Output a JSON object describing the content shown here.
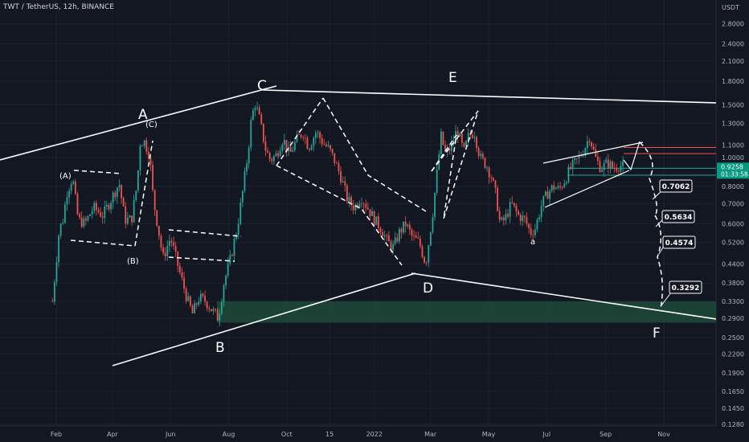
{
  "chart_data": {
    "type": "candlestick",
    "title": "TWT / TetherUS, 12h, BINANCE",
    "ylabel": "USDT",
    "y_scale": "log",
    "ylim": [
      0.128,
      3.2
    ],
    "x_tick_labels": [
      "Feb",
      "Apr",
      "Jun",
      "Aug",
      "Oct",
      "15",
      "2022",
      "Mar",
      "May",
      "Jul",
      "Sep",
      "Nov"
    ],
    "y_tick_labels": [
      "2.8000",
      "2.4000",
      "2.1000",
      "1.8000",
      "1.5000",
      "1.3000",
      "1.1000",
      "1.0000",
      "0.8000",
      "0.7000",
      "0.6000",
      "0.5200",
      "0.4400",
      "0.3800",
      "0.3300",
      "0.2900",
      "0.2500",
      "0.2200",
      "0.1900",
      "0.1650",
      "0.1450",
      "0.1280"
    ],
    "price_path": [
      [
        "2021-01-28",
        0.33
      ],
      [
        "2021-02-04",
        0.57
      ],
      [
        "2021-02-08",
        0.62
      ],
      [
        "2021-02-12",
        0.76
      ],
      [
        "2021-02-18",
        0.86
      ],
      [
        "2021-02-24",
        0.62
      ],
      [
        "2021-03-03",
        0.6
      ],
      [
        "2021-03-12",
        0.68
      ],
      [
        "2021-03-22",
        0.64
      ],
      [
        "2021-04-01",
        0.74
      ],
      [
        "2021-04-08",
        0.82
      ],
      [
        "2021-04-14",
        0.62
      ],
      [
        "2021-04-21",
        0.62
      ],
      [
        "2021-04-27",
        0.82
      ],
      [
        "2021-04-30",
        1.12
      ],
      [
        "2021-05-04",
        1.14
      ],
      [
        "2021-05-10",
        1.02
      ],
      [
        "2021-05-14",
        0.72
      ],
      [
        "2021-05-19",
        0.58
      ],
      [
        "2021-05-24",
        0.46
      ],
      [
        "2021-06-01",
        0.54
      ],
      [
        "2021-06-10",
        0.42
      ],
      [
        "2021-06-18",
        0.34
      ],
      [
        "2021-06-24",
        0.3
      ],
      [
        "2021-07-01",
        0.34
      ],
      [
        "2021-07-08",
        0.33
      ],
      [
        "2021-07-14",
        0.31
      ],
      [
        "2021-07-21",
        0.29
      ],
      [
        "2021-07-27",
        0.38
      ],
      [
        "2021-08-03",
        0.46
      ],
      [
        "2021-08-10",
        0.58
      ],
      [
        "2021-08-16",
        0.78
      ],
      [
        "2021-08-21",
        1.02
      ],
      [
        "2021-08-25",
        1.36
      ],
      [
        "2021-08-29",
        1.52
      ],
      [
        "2021-09-03",
        1.32
      ],
      [
        "2021-09-09",
        1.06
      ],
      [
        "2021-09-14",
        0.98
      ],
      [
        "2021-09-20",
        1.02
      ],
      [
        "2021-09-27",
        1.16
      ],
      [
        "2021-10-04",
        1.02
      ],
      [
        "2021-10-11",
        1.14
      ],
      [
        "2021-10-18",
        1.22
      ],
      [
        "2021-10-24",
        1.08
      ],
      [
        "2021-11-01",
        1.22
      ],
      [
        "2021-11-08",
        1.12
      ],
      [
        "2021-11-15",
        1.06
      ],
      [
        "2021-11-20",
        0.98
      ],
      [
        "2021-11-27",
        0.86
      ],
      [
        "2021-12-04",
        0.72
      ],
      [
        "2021-12-11",
        0.68
      ],
      [
        "2021-12-18",
        0.74
      ],
      [
        "2021-12-25",
        0.68
      ],
      [
        "2022-01-01",
        0.62
      ],
      [
        "2022-01-08",
        0.58
      ],
      [
        "2022-01-15",
        0.52
      ],
      [
        "2022-01-21",
        0.5
      ],
      [
        "2022-01-27",
        0.56
      ],
      [
        "2022-02-03",
        0.6
      ],
      [
        "2022-02-10",
        0.54
      ],
      [
        "2022-02-17",
        0.52
      ],
      [
        "2022-02-24",
        0.44
      ],
      [
        "2022-03-03",
        0.64
      ],
      [
        "2022-03-08",
        0.9
      ],
      [
        "2022-03-12",
        1.18
      ],
      [
        "2022-03-17",
        1.02
      ],
      [
        "2022-03-22",
        1.08
      ],
      [
        "2022-03-29",
        1.24
      ],
      [
        "2022-04-05",
        1.04
      ],
      [
        "2022-04-10",
        1.18
      ],
      [
        "2022-04-16",
        1.22
      ],
      [
        "2022-04-22",
        1.0
      ],
      [
        "2022-04-29",
        0.94
      ],
      [
        "2022-05-04",
        0.86
      ],
      [
        "2022-05-09",
        0.74
      ],
      [
        "2022-05-13",
        0.6
      ],
      [
        "2022-05-18",
        0.62
      ],
      [
        "2022-05-25",
        0.7
      ],
      [
        "2022-06-01",
        0.64
      ],
      [
        "2022-06-08",
        0.62
      ],
      [
        "2022-06-14",
        0.56
      ],
      [
        "2022-06-19",
        0.58
      ],
      [
        "2022-06-26",
        0.7
      ],
      [
        "2022-07-02",
        0.76
      ],
      [
        "2022-07-08",
        0.8
      ],
      [
        "2022-07-14",
        0.78
      ],
      [
        "2022-07-20",
        0.84
      ],
      [
        "2022-07-26",
        0.92
      ],
      [
        "2022-08-02",
        0.98
      ],
      [
        "2022-08-09",
        1.06
      ],
      [
        "2022-08-15",
        1.18
      ],
      [
        "2022-08-21",
        1.0
      ],
      [
        "2022-08-27",
        0.92
      ],
      [
        "2022-09-03",
        0.96
      ],
      [
        "2022-09-09",
        0.92
      ],
      [
        "2022-09-15",
        0.94
      ],
      [
        "2022-09-21",
        0.93
      ]
    ],
    "last_price": "0.9258",
    "countdown": "01:33:58",
    "wave_labels": [
      "A",
      "C",
      "E",
      "B",
      "D",
      "F"
    ],
    "sub_labels": [
      "(A)",
      "(B)",
      "(C)",
      "a"
    ],
    "target_labels": [
      "0.7062",
      "0.5634",
      "0.4574",
      "0.3292"
    ],
    "support_zone": [
      0.28,
      0.33
    ],
    "horizontal_levels": [
      1.08,
      1.03,
      0.92,
      0.872
    ],
    "colors": {
      "up": "#26a69a",
      "down": "#ef5350",
      "zone": "#1e4a38",
      "bg": "#131722",
      "price_tag": "#089981",
      "line": "#ffffff"
    }
  }
}
